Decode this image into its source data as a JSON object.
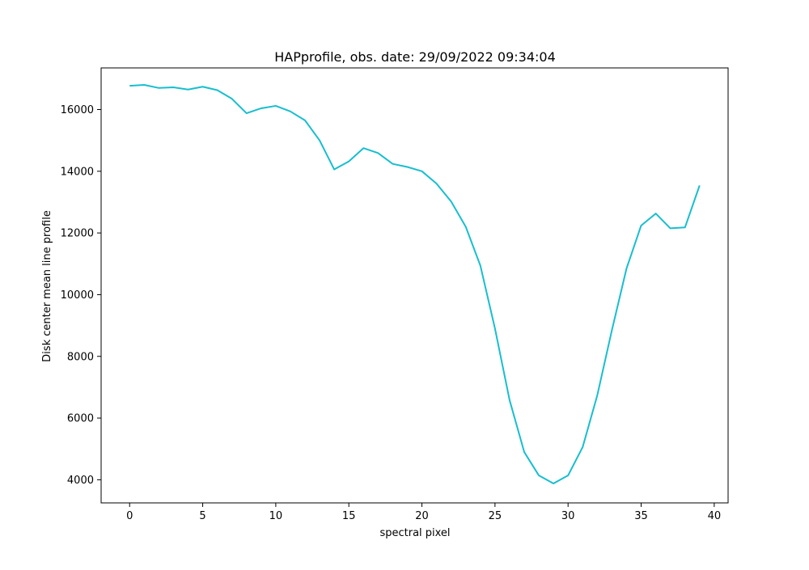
{
  "chart_data": {
    "type": "line",
    "title": "HAPprofile, obs. date: 29/09/2022 09:34:04",
    "xlabel": "spectral pixel",
    "ylabel": "Disk center mean line profile",
    "xlim": [
      -1.95,
      40.95
    ],
    "ylim": [
      3250,
      17350
    ],
    "xticks": [
      0,
      5,
      10,
      15,
      20,
      25,
      30,
      35,
      40
    ],
    "yticks": [
      4000,
      6000,
      8000,
      10000,
      12000,
      14000,
      16000
    ],
    "grid": false,
    "series": [
      {
        "color": "#17becf",
        "x": [
          0,
          1,
          2,
          3,
          4,
          5,
          6,
          7,
          8,
          9,
          10,
          11,
          12,
          13,
          14,
          15,
          16,
          17,
          18,
          19,
          20,
          21,
          22,
          23,
          24,
          25,
          26,
          27,
          28,
          29,
          30,
          31,
          32,
          33,
          34,
          35,
          36,
          37,
          38,
          39
        ],
        "y": [
          16770,
          16800,
          16700,
          16720,
          16650,
          16740,
          16630,
          16350,
          15880,
          16040,
          16120,
          15940,
          15650,
          15000,
          14060,
          14320,
          14750,
          14590,
          14240,
          14140,
          14000,
          13600,
          13020,
          12200,
          10940,
          8900,
          6580,
          4900,
          4140,
          3880,
          4140,
          5060,
          6740,
          8850,
          10850,
          12240,
          12630,
          12150,
          12180,
          13540
        ]
      }
    ]
  }
}
